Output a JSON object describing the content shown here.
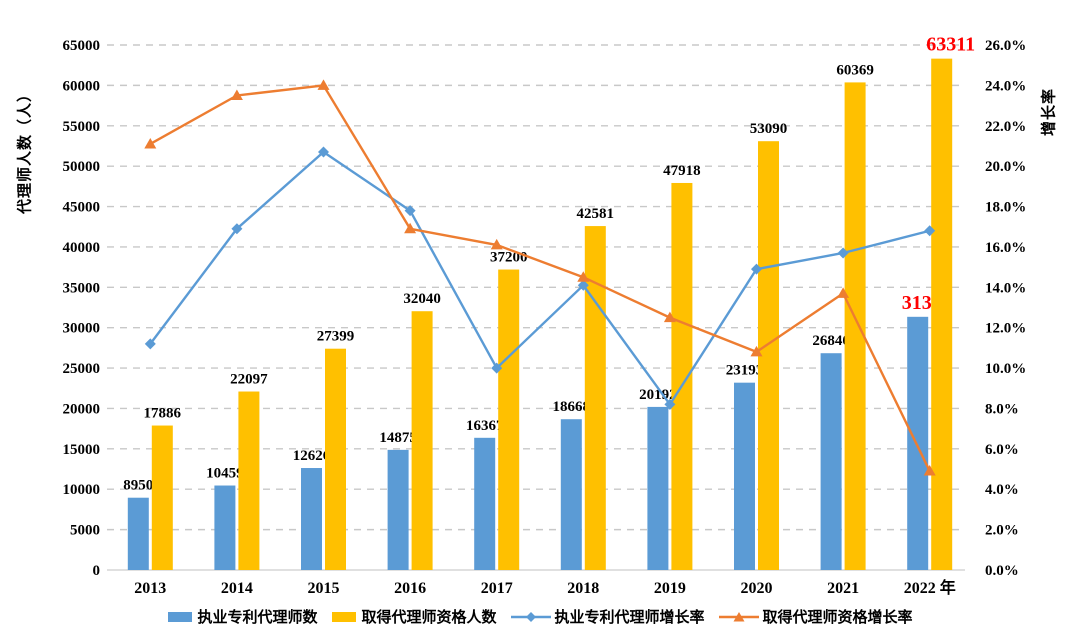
{
  "chart_data": {
    "type": "bar",
    "subtype": "grouped-bars-with-growth-lines",
    "categories": [
      "2013",
      "2014",
      "2015",
      "2016",
      "2017",
      "2018",
      "2019",
      "2020",
      "2021",
      "2022"
    ],
    "x_last_suffix": " 年",
    "bar_series": [
      {
        "name": "执业专利代理师数",
        "color": "#5B9BD5",
        "values": [
          8950,
          10459,
          12626,
          14875,
          16367,
          18668,
          20192,
          23193,
          26840,
          31347
        ]
      },
      {
        "name": "取得代理师资格人数",
        "color": "#FFC000",
        "values": [
          17886,
          22097,
          27399,
          32040,
          37200,
          42581,
          47918,
          53090,
          60369,
          63311
        ]
      }
    ],
    "line_series": [
      {
        "name": "执业专利代理师增长率",
        "color": "#5B9BD5",
        "marker": "diamond",
        "values": [
          11.2,
          16.9,
          20.7,
          17.8,
          10.0,
          14.1,
          8.2,
          14.9,
          15.7,
          16.8
        ]
      },
      {
        "name": "取得代理师资格增长率",
        "color": "#ED7D31",
        "marker": "triangle",
        "values": [
          21.1,
          23.5,
          24.0,
          16.9,
          16.1,
          14.5,
          12.5,
          10.8,
          13.7,
          4.9
        ]
      }
    ],
    "ylabel_left": "代理师人数（人）",
    "ylabel_right": "增长率",
    "y_left": {
      "min": 0,
      "max": 65000,
      "step": 5000
    },
    "y_right": {
      "min": 0,
      "max": 26,
      "step": 2,
      "format": "percent_1dp"
    },
    "highlight": {
      "index": 9,
      "color": "#FF0000"
    },
    "label_color": "#000000",
    "gridline_color": "#C8C8C8",
    "axis_line_color": "#D6D6D6",
    "grid": "dashed-horizontal",
    "legend_position": "bottom",
    "title": ""
  }
}
